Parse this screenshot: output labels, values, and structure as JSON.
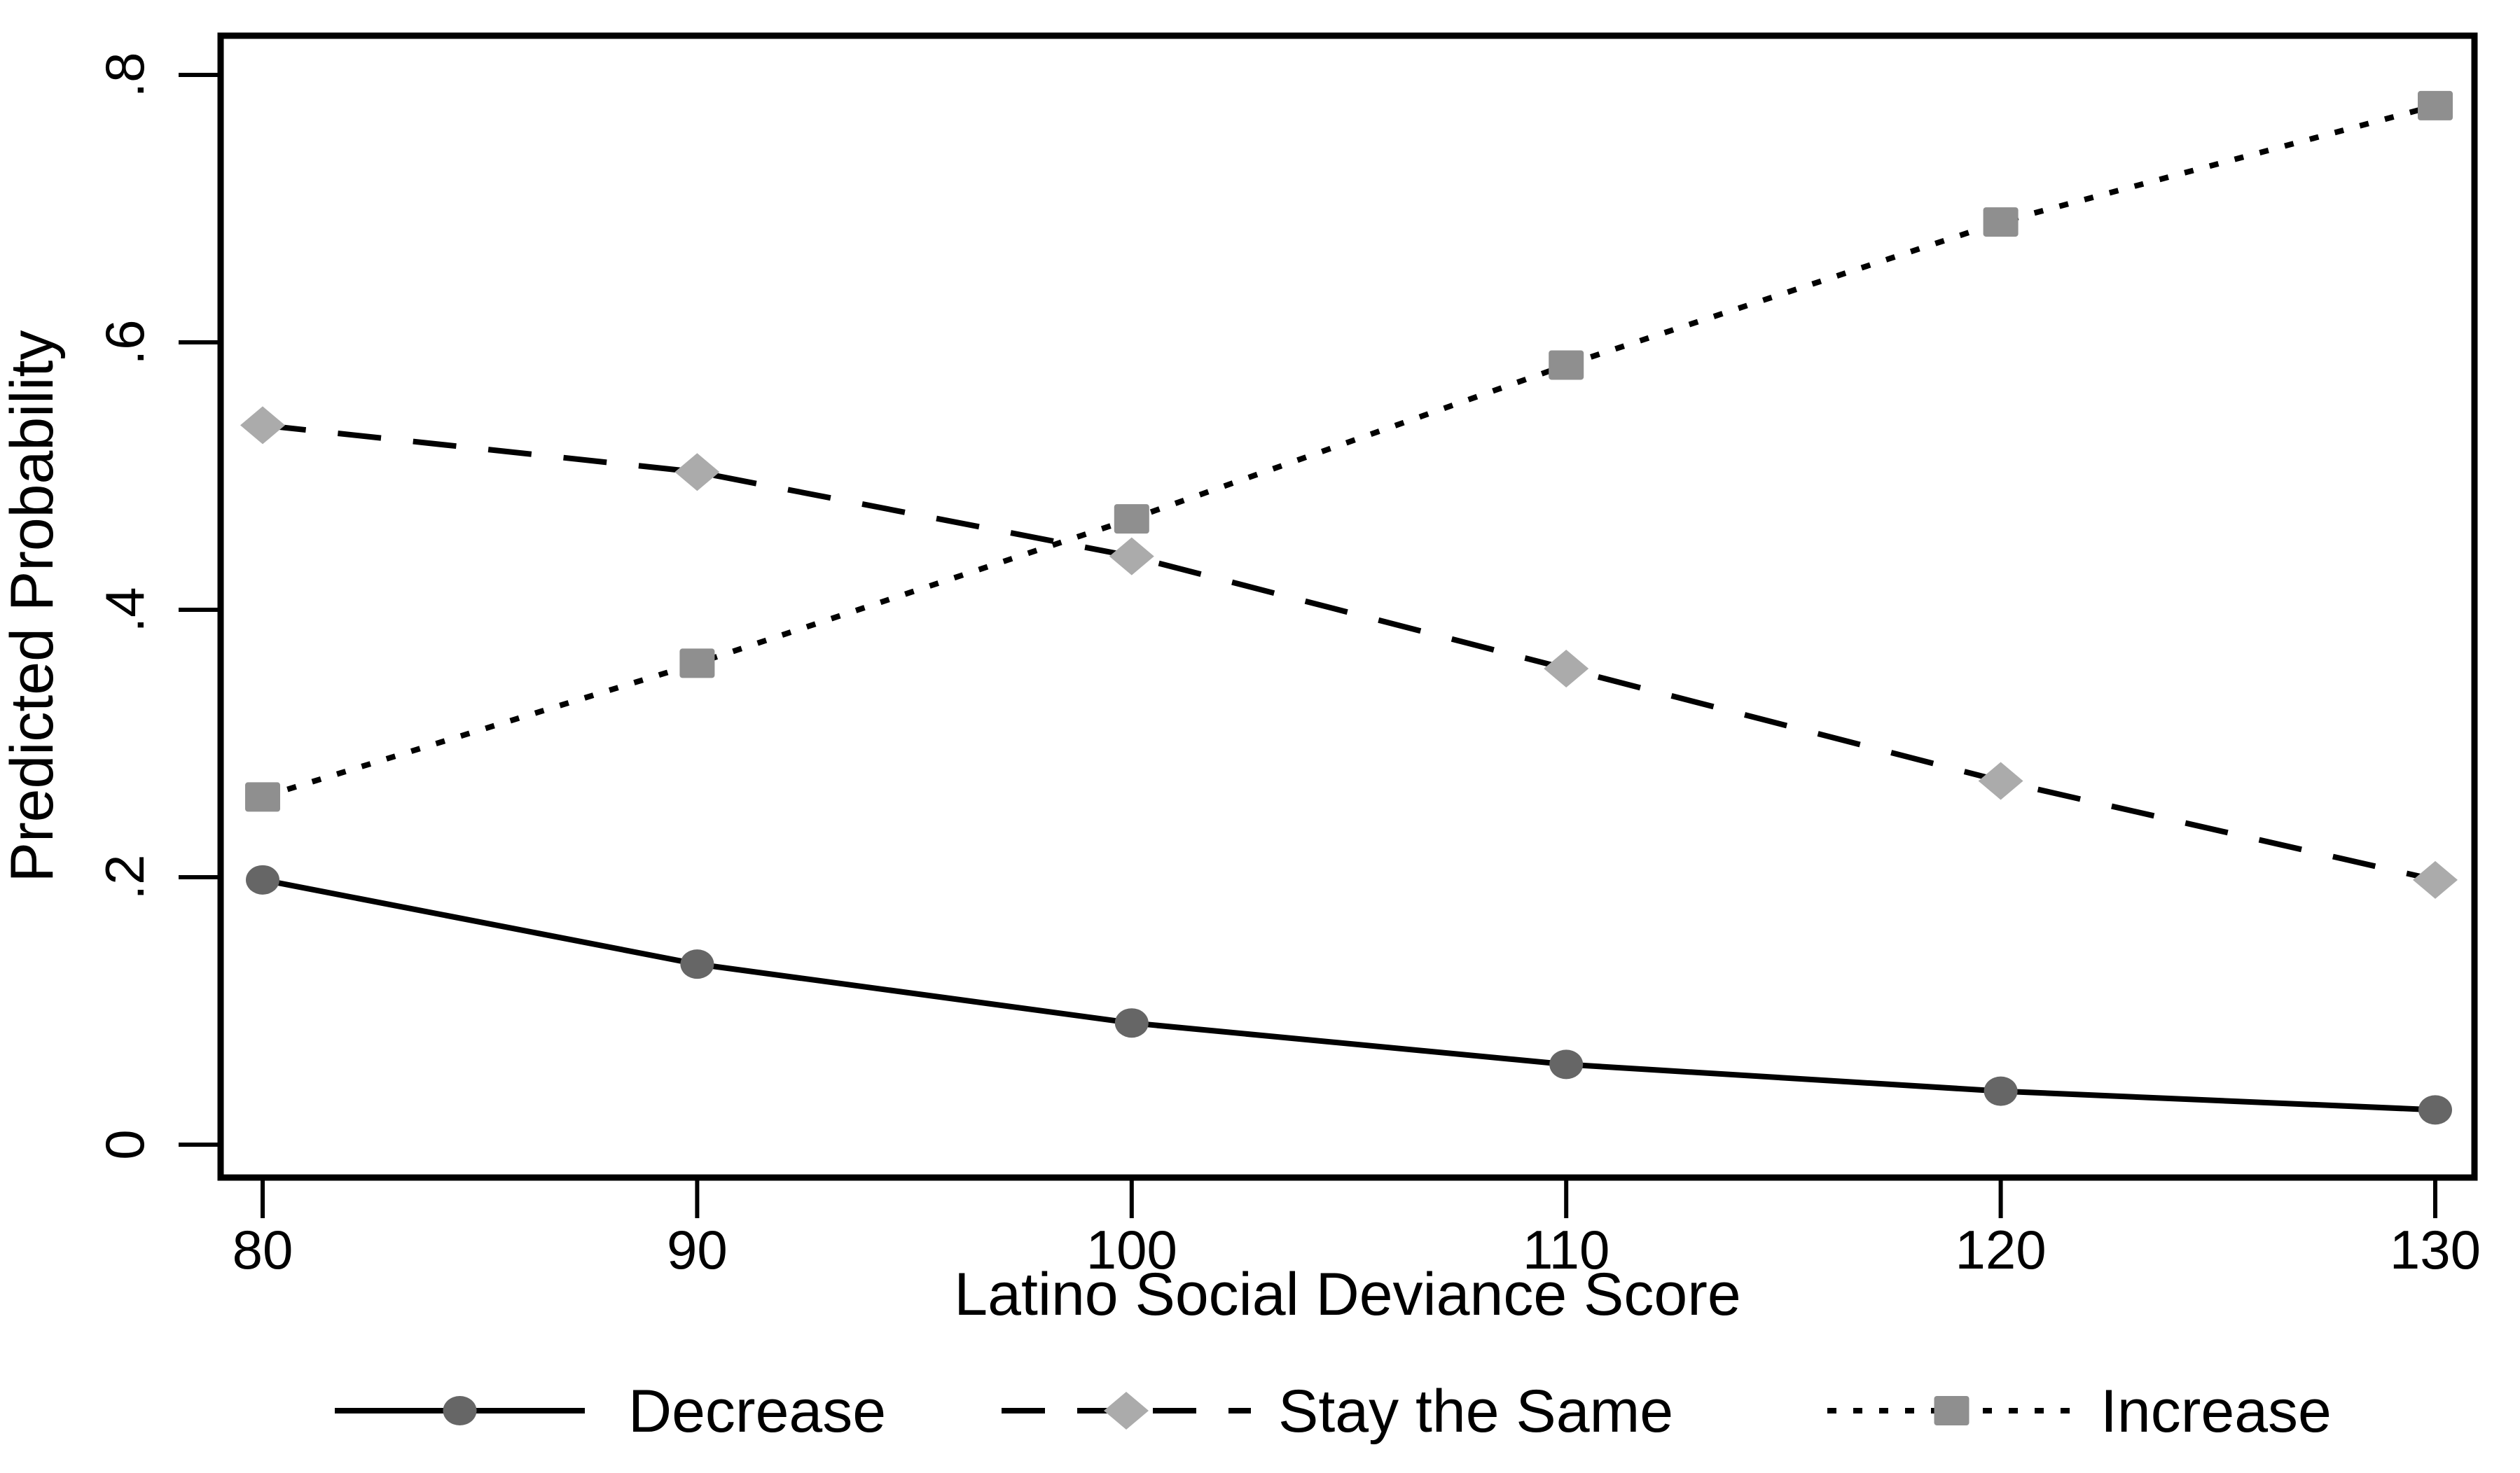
{
  "chart_data": {
    "type": "line",
    "title": "",
    "xlabel": "Latino Social Deviance Score",
    "ylabel": "Predicted Probability",
    "x": [
      80,
      90,
      100,
      110,
      120,
      130
    ],
    "x_tick_labels": [
      "80",
      "90",
      "100",
      "110",
      "120",
      "130"
    ],
    "y_tick_values": [
      0,
      0.2,
      0.4,
      0.6,
      0.8
    ],
    "y_tick_labels": [
      "0",
      ".2",
      ".4",
      ".6",
      ".8"
    ],
    "xlim": [
      79.05,
      130.9
    ],
    "ylim": [
      -0.025,
      0.829
    ],
    "grid": false,
    "legend_position": "bottom",
    "frame_color": "#000000",
    "background_color": "#ffffff",
    "series": [
      {
        "name": "Decrease",
        "marker": "circle",
        "marker_color": "#666666",
        "line_style": "solid",
        "line_color": "#000000",
        "values": [
          0.198,
          0.135,
          0.091,
          0.06,
          0.04,
          0.026
        ]
      },
      {
        "name": "Stay the Same",
        "marker": "diamond",
        "marker_color": "#ababab",
        "line_style": "dashed",
        "line_color": "#000000",
        "values": [
          0.538,
          0.503,
          0.44,
          0.356,
          0.272,
          0.198
        ]
      },
      {
        "name": "Increase",
        "marker": "square",
        "marker_color": "#8f8f8f",
        "line_style": "dotted",
        "line_color": "#000000",
        "values": [
          0.26,
          0.36,
          0.468,
          0.583,
          0.69,
          0.777
        ]
      }
    ]
  }
}
